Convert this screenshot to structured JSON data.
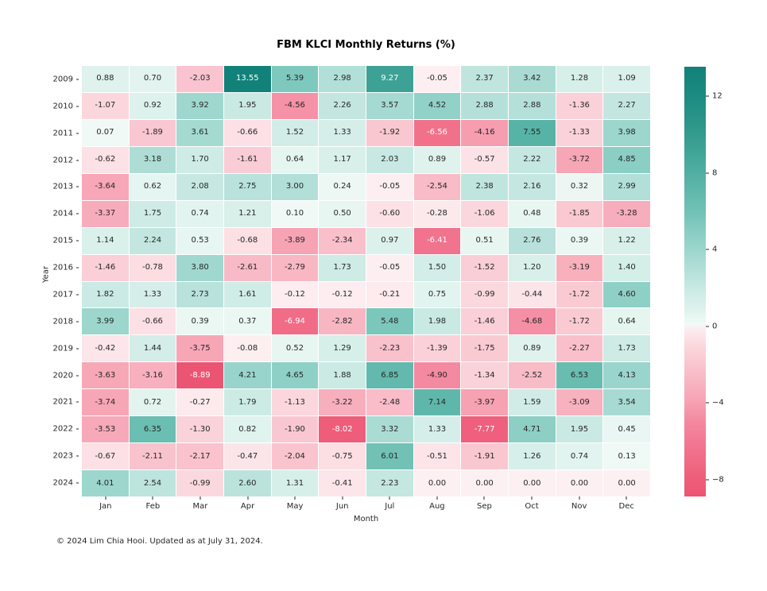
{
  "footer": {
    "text": "© 2024 Lim Chia Hooi. Updated as at July 31, 2024."
  },
  "chart_data": {
    "type": "heatmap",
    "title": "FBM KLCI Monthly Returns (%)",
    "xlabel": "Month",
    "ylabel": "Year",
    "x": [
      "Jan",
      "Feb",
      "Mar",
      "Apr",
      "May",
      "Jun",
      "Jul",
      "Aug",
      "Sep",
      "Oct",
      "Nov",
      "Dec"
    ],
    "y": [
      "2009",
      "2010",
      "2011",
      "2012",
      "2013",
      "2014",
      "2015",
      "2016",
      "2017",
      "2018",
      "2019",
      "2020",
      "2021",
      "2022",
      "2023",
      "2024"
    ],
    "values": [
      [
        0.88,
        0.7,
        -2.03,
        13.55,
        5.39,
        2.98,
        9.27,
        -0.05,
        2.37,
        3.42,
        1.28,
        1.09
      ],
      [
        -1.07,
        0.92,
        3.92,
        1.95,
        -4.56,
        2.26,
        3.57,
        4.52,
        2.88,
        2.88,
        -1.36,
        2.27
      ],
      [
        0.07,
        -1.89,
        3.61,
        -0.66,
        1.52,
        1.33,
        -1.92,
        -6.56,
        -4.16,
        7.55,
        -1.33,
        3.98
      ],
      [
        -0.62,
        3.18,
        1.7,
        -1.61,
        0.64,
        1.17,
        2.03,
        0.89,
        -0.57,
        2.22,
        -3.72,
        4.85
      ],
      [
        -3.64,
        0.62,
        2.08,
        2.75,
        3.0,
        0.24,
        -0.05,
        -2.54,
        2.38,
        2.16,
        0.32,
        2.99
      ],
      [
        -3.37,
        1.75,
        0.74,
        1.21,
        0.1,
        0.5,
        -0.6,
        -0.28,
        -1.06,
        0.48,
        -1.85,
        -3.28
      ],
      [
        1.14,
        2.24,
        0.53,
        -0.68,
        -3.89,
        -2.34,
        0.97,
        -6.41,
        0.51,
        2.76,
        0.39,
        1.22
      ],
      [
        -1.46,
        -0.78,
        3.8,
        -2.61,
        -2.79,
        1.73,
        -0.05,
        1.5,
        -1.52,
        1.2,
        -3.19,
        1.4
      ],
      [
        1.82,
        1.33,
        2.73,
        1.61,
        -0.12,
        -0.12,
        -0.21,
        0.75,
        -0.99,
        -0.44,
        -1.72,
        4.6
      ],
      [
        3.99,
        -0.66,
        0.39,
        0.37,
        -6.94,
        -2.82,
        5.48,
        1.98,
        -1.46,
        -4.68,
        -1.72,
        0.64
      ],
      [
        -0.42,
        1.44,
        -3.75,
        -0.08,
        0.52,
        1.29,
        -2.23,
        -1.39,
        -1.75,
        0.89,
        -2.27,
        1.73
      ],
      [
        -3.63,
        -3.16,
        -8.89,
        4.21,
        4.65,
        1.88,
        6.85,
        -4.9,
        -1.34,
        -2.52,
        6.53,
        4.13
      ],
      [
        -3.74,
        0.72,
        -0.27,
        1.79,
        -1.13,
        -3.22,
        -2.48,
        7.14,
        -3.97,
        1.59,
        -3.09,
        3.54
      ],
      [
        -3.53,
        6.35,
        -1.3,
        0.82,
        -1.9,
        -8.02,
        3.32,
        1.33,
        -7.77,
        4.71,
        1.95,
        0.45
      ],
      [
        -0.67,
        -2.11,
        -2.17,
        -0.47,
        -2.04,
        -0.75,
        6.01,
        -0.51,
        -1.91,
        1.26,
        0.74,
        0.13
      ],
      [
        4.01,
        2.54,
        -0.99,
        2.6,
        1.31,
        -0.41,
        2.23,
        0.0,
        0.0,
        0.0,
        0.0,
        0.0
      ]
    ],
    "vmin": -8.89,
    "vmax": 13.55,
    "colorbar_ticks": [
      12,
      8,
      4,
      0,
      -4,
      -8
    ],
    "legend_position": "right-colorbar",
    "grid_lines": "white-1px",
    "colors": {
      "background": "#ffffff",
      "cell_text_dark": "#262626",
      "cell_text_light": "#ffffff",
      "tick_color": "#262626",
      "title_color": "#000000"
    },
    "palette": {
      "positive": [
        [
          0,
          "#f2faf7"
        ],
        [
          0.5,
          "#e8f6f2"
        ],
        [
          1,
          "#dcf1ec"
        ],
        [
          2,
          "#c9e9e3"
        ],
        [
          3,
          "#b2dfd8"
        ],
        [
          4,
          "#9cd6cd"
        ],
        [
          5,
          "#87ccc2"
        ],
        [
          6,
          "#71c1b5"
        ],
        [
          7,
          "#61b8ac"
        ],
        [
          8,
          "#50afa2"
        ],
        [
          9,
          "#41a597"
        ],
        [
          10,
          "#339b8e"
        ],
        [
          12,
          "#1c8b81"
        ],
        [
          13.55,
          "#128179"
        ]
      ],
      "negative": [
        [
          -8.89,
          "#ec5473"
        ],
        [
          -8,
          "#ee5d7a"
        ],
        [
          -7,
          "#f06b86"
        ],
        [
          -6,
          "#f27992"
        ],
        [
          -5,
          "#f4879f"
        ],
        [
          -4,
          "#f6a1b2"
        ],
        [
          -3,
          "#f8b3c0"
        ],
        [
          -2,
          "#f9c5cf"
        ],
        [
          -1,
          "#fbd8de"
        ],
        [
          -0.5,
          "#fce4e8"
        ],
        [
          0,
          "#fdf0f2"
        ]
      ]
    }
  }
}
